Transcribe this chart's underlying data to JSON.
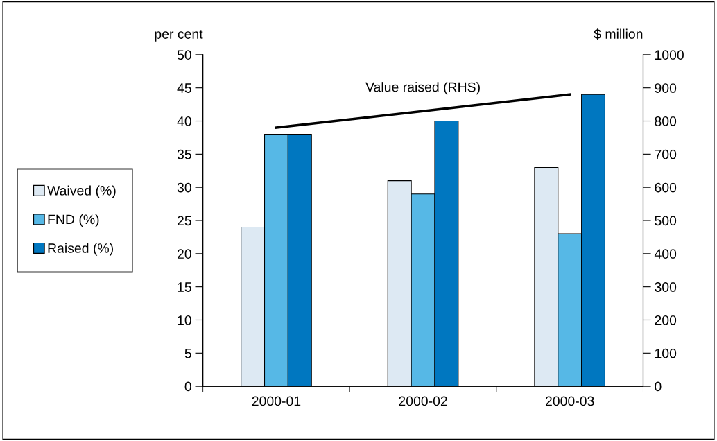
{
  "chart_data": {
    "type": "bar",
    "ylabel": "per cent",
    "y2label": "$ million",
    "categories": [
      "2000-01",
      "2000-02",
      "2000-03"
    ],
    "series": [
      {
        "name": "Waived (%)",
        "color": "#dde9f3",
        "values": [
          24,
          31,
          33
        ]
      },
      {
        "name": "FND (%)",
        "color": "#56b8e6",
        "values": [
          38,
          29,
          23
        ]
      },
      {
        "name": "Raised (%)",
        "color": "#0077c0",
        "values": [
          38,
          40,
          44
        ]
      },
      {
        "name": "Value raised (RHS)",
        "type": "line",
        "axis": "y2",
        "color": "#000000",
        "values": [
          780,
          830,
          880
        ]
      }
    ],
    "ylim": [
      0,
      50
    ],
    "yticks": [
      0,
      5,
      10,
      15,
      20,
      25,
      30,
      35,
      40,
      45,
      50
    ],
    "y2lim": [
      0,
      1000
    ],
    "y2ticks": [
      0,
      100,
      200,
      300,
      400,
      500,
      600,
      700,
      800,
      900,
      1000
    ],
    "grid": false,
    "legend": "left",
    "marker": "none",
    "line_style": "solid"
  }
}
